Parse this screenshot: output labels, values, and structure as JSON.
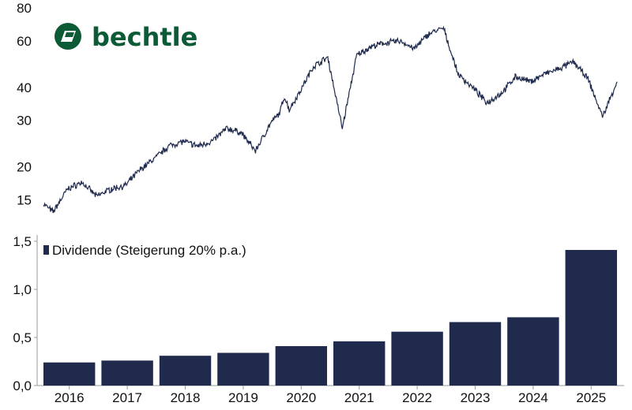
{
  "brand": {
    "name": "bechtle",
    "color": "#0d5a36"
  },
  "colors": {
    "line": "#1f2a4d",
    "bar": "#1f2a4d",
    "axis": "#9a9a9a"
  },
  "chart_data": [
    {
      "type": "line",
      "yscale": "log",
      "ylim": [
        12,
        80
      ],
      "yticks": [
        "15",
        "20",
        "30",
        "40",
        "60",
        "80"
      ],
      "x_range": [
        "2016-01",
        "2025-12"
      ],
      "series": [
        {
          "x": [
            "2016-01",
            "2016-03",
            "2016-06",
            "2016-09",
            "2016-12",
            "2017-03",
            "2017-06",
            "2017-09",
            "2017-12",
            "2018-03",
            "2018-06",
            "2018-09",
            "2018-12",
            "2019-03",
            "2019-06",
            "2019-09",
            "2019-12",
            "2020-02",
            "2020-03",
            "2020-04",
            "2020-06",
            "2020-09",
            "2020-12",
            "2021-03",
            "2021-06",
            "2021-09",
            "2021-12",
            "2022-03",
            "2022-06",
            "2022-09",
            "2022-12",
            "2023-03",
            "2023-06",
            "2023-09",
            "2023-12",
            "2024-03",
            "2024-06",
            "2024-09",
            "2024-12",
            "2025-03",
            "2025-06",
            "2025-09",
            "2025-12"
          ],
          "y": [
            14.5,
            13.5,
            16.5,
            17.5,
            15.5,
            16.5,
            17,
            19.5,
            21.5,
            24,
            25,
            24,
            25,
            28,
            27,
            23,
            29,
            32,
            37,
            33,
            38,
            48,
            52,
            28,
            53,
            57,
            59,
            60,
            56,
            64,
            67,
            45,
            40,
            35,
            38,
            44,
            42,
            45,
            47,
            50,
            43,
            31,
            42
          ]
        }
      ]
    },
    {
      "type": "bar",
      "categories": [
        "2016",
        "2017",
        "2018",
        "2019",
        "2020",
        "2021",
        "2022",
        "2023",
        "2024",
        "2025"
      ],
      "series": [
        {
          "name": "Dividende (Steigerung 20% p.a.)",
          "values": [
            0.24,
            0.26,
            0.31,
            0.34,
            0.41,
            0.46,
            0.56,
            0.66,
            0.71,
            1.41
          ]
        }
      ],
      "ylim": [
        0,
        1.5
      ],
      "yticks": [
        "0,0",
        "0,5",
        "1,0",
        "1,5"
      ],
      "legend": "top-left"
    }
  ]
}
